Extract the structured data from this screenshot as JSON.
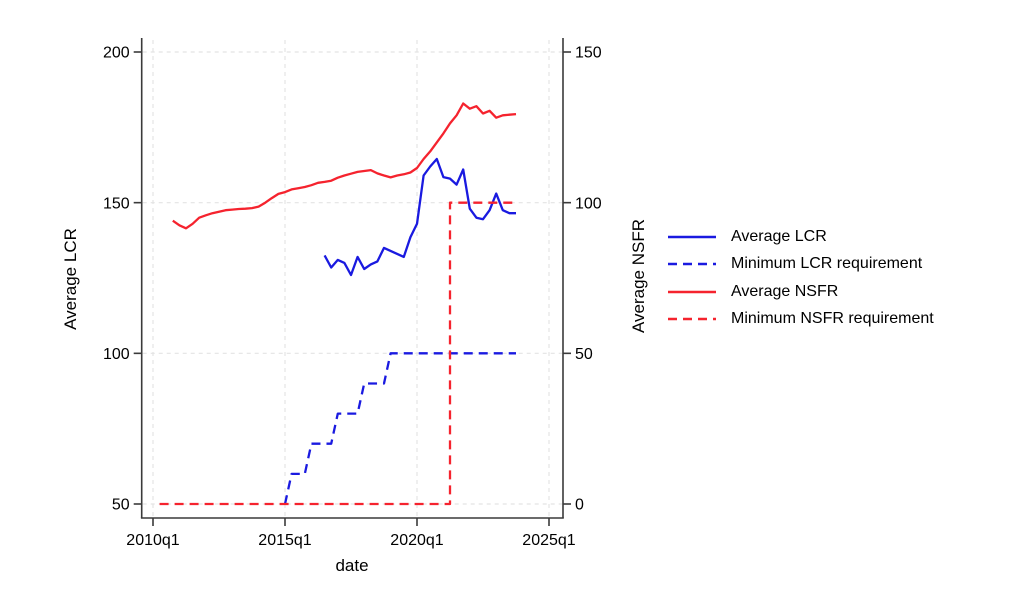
{
  "chart_data": {
    "type": "line",
    "title": "",
    "xlabel": "date",
    "ylabel_left": "Average LCR",
    "ylabel_right": "Average NSFR",
    "x_ticks": [
      "2010q1",
      "2015q1",
      "2020q1",
      "2025q1"
    ],
    "y_left_ticks": [
      "50",
      "100",
      "150",
      "200"
    ],
    "y_right_ticks": [
      "0",
      "50",
      "100",
      "150"
    ],
    "y_left_range": [
      50,
      200
    ],
    "y_right_range": [
      0,
      150
    ],
    "grid": true,
    "grid_style": "light-gray-dashed",
    "legend_position": "right-outside",
    "series": [
      {
        "name": "Average LCR",
        "axis": "left",
        "color": "#1a1ae0",
        "style": "solid",
        "points": [
          [
            "2016q3",
            132.5
          ],
          [
            "2016q4",
            128.5
          ],
          [
            "2017q1",
            131
          ],
          [
            "2017q2",
            130
          ],
          [
            "2017q3",
            126
          ],
          [
            "2017q4",
            132
          ],
          [
            "2018q1",
            128
          ],
          [
            "2018q2",
            129.5
          ],
          [
            "2018q3",
            130.5
          ],
          [
            "2018q4",
            135
          ],
          [
            "2019q1",
            134
          ],
          [
            "2019q2",
            133
          ],
          [
            "2019q3",
            132
          ],
          [
            "2019q4",
            138.5
          ],
          [
            "2020q1",
            143
          ],
          [
            "2020q2",
            159
          ],
          [
            "2020q3",
            162
          ],
          [
            "2020q4",
            164.5
          ],
          [
            "2021q1",
            158.5
          ],
          [
            "2021q2",
            158
          ],
          [
            "2021q3",
            156
          ],
          [
            "2021q4",
            161
          ],
          [
            "2022q1",
            148
          ],
          [
            "2022q2",
            145
          ],
          [
            "2022q3",
            144.5
          ],
          [
            "2022q4",
            147.5
          ],
          [
            "2023q1",
            153
          ],
          [
            "2023q2",
            147.5
          ],
          [
            "2023q3",
            146.5
          ],
          [
            "2023q4",
            146.5
          ]
        ]
      },
      {
        "name": "Minimum LCR requirement",
        "axis": "left",
        "color": "#1a1ae0",
        "style": "dashed",
        "points": [
          [
            "2015q1",
            50
          ],
          [
            "2015q2",
            60
          ],
          [
            "2015q4",
            60
          ],
          [
            "2016q1",
            70
          ],
          [
            "2016q4",
            70
          ],
          [
            "2017q1",
            80
          ],
          [
            "2017q4",
            80
          ],
          [
            "2018q1",
            90
          ],
          [
            "2018q4",
            90
          ],
          [
            "2019q1",
            100
          ],
          [
            "2023q4",
            100
          ]
        ]
      },
      {
        "name": "Average NSFR",
        "axis": "right",
        "color": "#f5232e",
        "style": "solid",
        "points": [
          [
            "2010q4",
            94
          ],
          [
            "2011q1",
            92.5
          ],
          [
            "2011q2",
            91.5
          ],
          [
            "2011q3",
            93
          ],
          [
            "2011q4",
            95
          ],
          [
            "2012q1",
            95.8
          ],
          [
            "2012q2",
            96.5
          ],
          [
            "2012q3",
            97
          ],
          [
            "2012q4",
            97.5
          ],
          [
            "2013q1",
            97.7
          ],
          [
            "2013q2",
            97.9
          ],
          [
            "2013q3",
            98
          ],
          [
            "2013q4",
            98.2
          ],
          [
            "2014q1",
            98.7
          ],
          [
            "2014q2",
            100
          ],
          [
            "2014q3",
            101.5
          ],
          [
            "2014q4",
            102.9
          ],
          [
            "2015q1",
            103.5
          ],
          [
            "2015q2",
            104.4
          ],
          [
            "2015q3",
            104.8
          ],
          [
            "2015q4",
            105.2
          ],
          [
            "2016q1",
            105.8
          ],
          [
            "2016q2",
            106.6
          ],
          [
            "2016q3",
            106.9
          ],
          [
            "2016q4",
            107.3
          ],
          [
            "2017q1",
            108.3
          ],
          [
            "2017q2",
            109
          ],
          [
            "2017q3",
            109.6
          ],
          [
            "2017q4",
            110.2
          ],
          [
            "2018q1",
            110.5
          ],
          [
            "2018q2",
            110.8
          ],
          [
            "2018q3",
            109.7
          ],
          [
            "2018q4",
            109
          ],
          [
            "2019q1",
            108.4
          ],
          [
            "2019q2",
            109
          ],
          [
            "2019q3",
            109.4
          ],
          [
            "2019q4",
            110
          ],
          [
            "2020q1",
            111.5
          ],
          [
            "2020q2",
            114.5
          ],
          [
            "2020q3",
            117
          ],
          [
            "2020q4",
            120
          ],
          [
            "2021q1",
            123
          ],
          [
            "2021q2",
            126.3
          ],
          [
            "2021q3",
            129
          ],
          [
            "2021q4",
            132.9
          ],
          [
            "2022q1",
            131.2
          ],
          [
            "2022q2",
            132
          ],
          [
            "2022q3",
            129.6
          ],
          [
            "2022q4",
            130.5
          ],
          [
            "2023q1",
            128.2
          ],
          [
            "2023q2",
            129
          ],
          [
            "2023q3",
            129.2
          ],
          [
            "2023q4",
            129.4
          ]
        ]
      },
      {
        "name": "Minimum NSFR requirement",
        "axis": "right",
        "color": "#f5232e",
        "style": "dashed",
        "points": [
          [
            "2010q2",
            0
          ],
          [
            "2021q2",
            0
          ],
          [
            "2021q2",
            100
          ],
          [
            "2023q4",
            100
          ]
        ]
      }
    ]
  },
  "colors": {
    "line_blue": "#1a1ae0",
    "line_red": "#f5232e",
    "grid": "#e4e4e4",
    "axis": "#3a3a3a",
    "text": "#000000",
    "background": "#ffffff"
  }
}
